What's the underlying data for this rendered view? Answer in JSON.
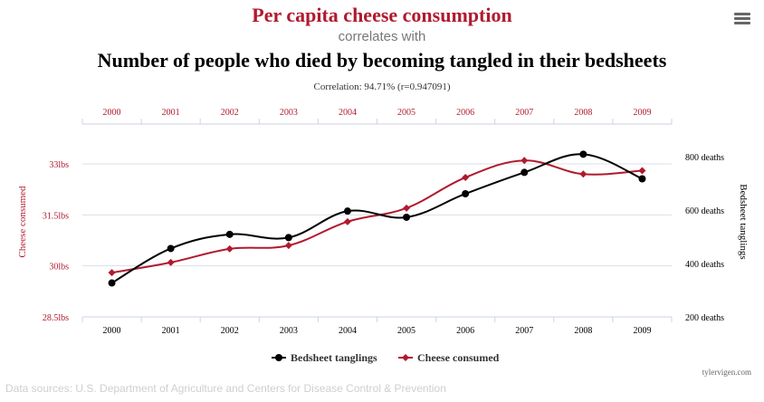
{
  "header": {
    "title": "Per capita cheese consumption",
    "subtitle": "correlates with",
    "title2": "Number of people who died by becoming tangled in their bedsheets",
    "correlation": "Correlation: 94.71% (r=0.947091)"
  },
  "footer": {
    "credit": "tylervigen.com",
    "sources": "Data sources: U.S. Department of Agriculture and Centers for Disease Control & Prevention"
  },
  "colors": {
    "cheese": "#b01a2e",
    "bedsheet": "#000000",
    "grid": "#d8e0e8",
    "axis": "#ccd6e0"
  },
  "chart_data": {
    "type": "line",
    "categories": [
      "2000",
      "2001",
      "2002",
      "2003",
      "2004",
      "2005",
      "2006",
      "2007",
      "2008",
      "2009"
    ],
    "left_axis": {
      "label": "Cheese consumed",
      "ticks": [
        "28.5lbs",
        "30lbs",
        "31.5lbs",
        "33lbs"
      ],
      "tick_values": [
        28.5,
        30,
        31.5,
        33
      ],
      "range": [
        28.5,
        33
      ]
    },
    "right_axis": {
      "label": "Bedsheet tanglings",
      "ticks": [
        "200 deaths",
        "400 deaths",
        "600 deaths",
        "800 deaths"
      ],
      "tick_values": [
        200,
        400,
        600,
        800
      ],
      "range": [
        200,
        800
      ]
    },
    "series": [
      {
        "name": "Bedsheet tanglings",
        "axis": "right",
        "color": "#000000",
        "marker": "circle",
        "values": [
          327,
          456,
          509,
          497,
          596,
          573,
          661,
          741,
          809,
          717
        ]
      },
      {
        "name": "Cheese consumed",
        "axis": "left",
        "color": "#b01a2e",
        "marker": "diamond",
        "values": [
          29.8,
          30.1,
          30.5,
          30.6,
          31.3,
          31.7,
          32.6,
          33.1,
          32.7,
          32.8
        ]
      }
    ],
    "legend": "bottom-center",
    "grid": true
  }
}
